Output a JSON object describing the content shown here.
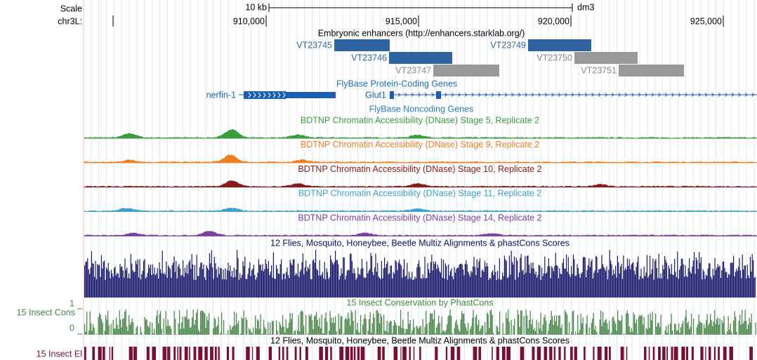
{
  "ruler": {
    "scale_label": "Scale",
    "scale_bar": "10 kb",
    "assembly": "dm3",
    "chrom": "chr3L:",
    "ticks": [
      "910,000",
      "915,000",
      "920,000",
      "925,000"
    ]
  },
  "enhancers": {
    "title": "Embryonic enhancers (http://enhancers.starklab.org/)",
    "items": [
      "VT23745",
      "VT23746",
      "VT23747",
      "VT23749",
      "VT23750",
      "VT23751"
    ]
  },
  "genes": {
    "title": "FlyBase Protein-Coding Genes",
    "items": [
      "nerfin-1",
      "Glut1"
    ]
  },
  "noncoding": {
    "title": "FlyBase Noncoding Genes"
  },
  "dnase": {
    "titles": [
      "BDTNP Chromatin Accessibility (DNase) Stage 5, Replicate 2",
      "BDTNP Chromatin Accessibility (DNase) Stage 9, Replicate 2",
      "BDTNP Chromatin Accessibility (DNase) Stage 10, Replicate 2",
      "BDTNP Chromatin Accessibility (DNase) Stage 11, Replicate 2",
      "BDTNP Chromatin Accessibility (DNase) Stage 14, Replicate 2"
    ]
  },
  "multiz": {
    "title": "12 Flies, Mosquito, Honeybee, Beetle Multiz Alignments & phastCons Scores"
  },
  "cons": {
    "title": "15 Insect Conservation by PhastCons",
    "label": "15 Insect Cons",
    "max": "1",
    "min": "0"
  },
  "elements": {
    "title": "12 Flies, Mosquito, Honeybee, Beetle Multiz Alignments & phastCons Scores",
    "label": "15 Insect El"
  }
}
